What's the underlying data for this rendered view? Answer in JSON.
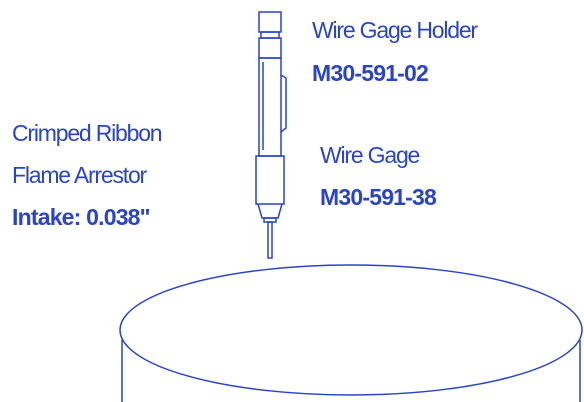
{
  "labels": {
    "holder": {
      "name": "Wire Gage Holder",
      "part": "M30-591-02"
    },
    "gage": {
      "name": "Wire Gage",
      "part": "M30-591-38"
    },
    "arrestor": {
      "line1": "Crimped Ribbon",
      "line2": "Flame Arrestor",
      "line3": "Intake: 0.038\""
    }
  }
}
